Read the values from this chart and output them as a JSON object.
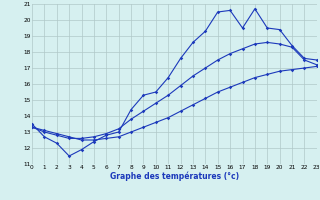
{
  "x": [
    0,
    1,
    2,
    3,
    4,
    5,
    6,
    7,
    8,
    9,
    10,
    11,
    12,
    13,
    14,
    15,
    16,
    17,
    18,
    19,
    20,
    21,
    22,
    23
  ],
  "line1": [
    13.5,
    12.7,
    12.3,
    11.5,
    11.9,
    12.4,
    12.8,
    13.0,
    14.4,
    15.3,
    15.5,
    16.4,
    17.6,
    18.6,
    19.3,
    20.5,
    20.6,
    19.5,
    20.7,
    19.5,
    19.4,
    18.4,
    17.6,
    17.5
  ],
  "line2": [
    13.3,
    13.1,
    12.9,
    12.7,
    12.5,
    12.5,
    12.6,
    12.7,
    13.0,
    13.3,
    13.6,
    13.9,
    14.3,
    14.7,
    15.1,
    15.5,
    15.8,
    16.1,
    16.4,
    16.6,
    16.8,
    16.9,
    17.0,
    17.1
  ],
  "line3": [
    13.3,
    13.0,
    12.8,
    12.6,
    12.6,
    12.7,
    12.9,
    13.2,
    13.8,
    14.3,
    14.8,
    15.3,
    15.9,
    16.5,
    17.0,
    17.5,
    17.9,
    18.2,
    18.5,
    18.6,
    18.5,
    18.3,
    17.5,
    17.2
  ],
  "line_color": "#1c39bb",
  "bg_color": "#d6f0f0",
  "grid_color": "#b0c8c8",
  "xlabel": "Graphe des températures (°c)",
  "xlim": [
    0,
    23
  ],
  "ylim": [
    11,
    21
  ],
  "xticks": [
    0,
    1,
    2,
    3,
    4,
    5,
    6,
    7,
    8,
    9,
    10,
    11,
    12,
    13,
    14,
    15,
    16,
    17,
    18,
    19,
    20,
    21,
    22,
    23
  ],
  "yticks": [
    11,
    12,
    13,
    14,
    15,
    16,
    17,
    18,
    19,
    20,
    21
  ],
  "marker": "D",
  "markersize": 1.8,
  "linewidth": 0.8,
  "tick_fontsize": 4.2,
  "xlabel_fontsize": 5.5
}
